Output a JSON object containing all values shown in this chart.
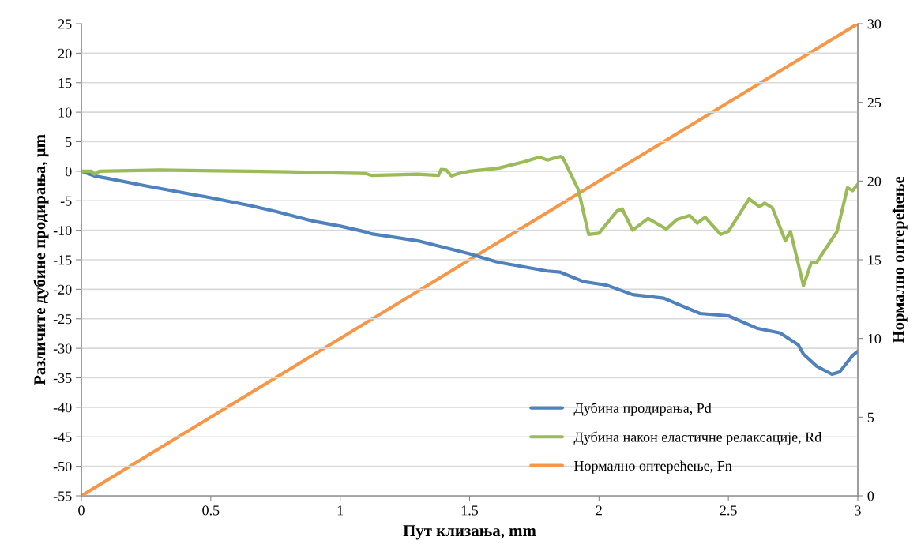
{
  "chart_data": {
    "type": "line",
    "xlabel": "Пут клизања, mm",
    "ylabel": "Различите дубине продирања, µm",
    "y2label": "Нормално оптерећење",
    "xlim": [
      0,
      3
    ],
    "xticks": [
      0,
      0.5,
      1,
      1.5,
      2,
      2.5,
      3
    ],
    "ylim": [
      -55,
      25
    ],
    "yticks": [
      -55,
      -50,
      -45,
      -40,
      -35,
      -30,
      -25,
      -20,
      -15,
      -10,
      -5,
      0,
      5,
      10,
      15,
      20,
      25
    ],
    "y2lim": [
      0,
      30
    ],
    "y2ticks": [
      0,
      5,
      10,
      15,
      20,
      25,
      30
    ],
    "grid": "y",
    "legend": "bottom right",
    "marker": "none",
    "line_style": "solid",
    "series": [
      {
        "name": "Дубина продирања, Pd",
        "color": "#4f81bd",
        "x": [
          0,
          0.05,
          0.1,
          0.25,
          0.5,
          0.65,
          0.75,
          0.9,
          1.0,
          1.1,
          1.12,
          1.3,
          1.5,
          1.6,
          1.62,
          1.8,
          1.85,
          1.94,
          2.03,
          2.13,
          2.25,
          2.39,
          2.5,
          2.61,
          2.7,
          2.77,
          2.79,
          2.84,
          2.9,
          2.93,
          2.98,
          3.0
        ],
        "values": [
          0,
          -0.8,
          -1.2,
          -2.5,
          -4.5,
          -5.8,
          -6.8,
          -8.5,
          -9.3,
          -10.3,
          -10.6,
          -11.8,
          -14,
          -15.3,
          -15.5,
          -16.9,
          -17.1,
          -18.7,
          -19.3,
          -20.9,
          -21.5,
          -24.1,
          -24.5,
          -26.6,
          -27.4,
          -29.4,
          -31,
          -33,
          -34.4,
          -34,
          -31.2,
          -30.5
        ]
      },
      {
        "name": "Дубина након еластичне релаксације, Rd",
        "color": "#9bbb59",
        "x": [
          0,
          0.04,
          0.05,
          0.07,
          0.3,
          0.65,
          0.8,
          1.0,
          1.1,
          1.12,
          1.3,
          1.38,
          1.39,
          1.41,
          1.43,
          1.456,
          1.5,
          1.61,
          1.71,
          1.77,
          1.8,
          1.85,
          1.86,
          1.89,
          1.92,
          1.96,
          2.0,
          2.07,
          2.09,
          2.13,
          2.19,
          2.26,
          2.3,
          2.35,
          2.38,
          2.41,
          2.47,
          2.5,
          2.58,
          2.62,
          2.64,
          2.67,
          2.72,
          2.74,
          2.79,
          2.82,
          2.84,
          2.92,
          2.96,
          2.98,
          3.0
        ],
        "values": [
          0,
          0,
          -0.5,
          0,
          0.2,
          0,
          -0.1,
          -0.3,
          -0.4,
          -0.7,
          -0.5,
          -0.7,
          0.3,
          0.2,
          -0.8,
          -0.4,
          0,
          0.5,
          1.6,
          2.4,
          1.9,
          2.5,
          2.3,
          -0.4,
          -3.1,
          -10.7,
          -10.5,
          -6.7,
          -6.4,
          -10.0,
          -8.0,
          -9.8,
          -8.2,
          -7.5,
          -8.8,
          -7.8,
          -10.7,
          -10.2,
          -4.7,
          -6.0,
          -5.4,
          -6.2,
          -11.8,
          -10.2,
          -19.4,
          -15.5,
          -15.5,
          -10.2,
          -2.8,
          -3.3,
          -2.2
        ]
      },
      {
        "name": "Нормално оптерећење, Fn",
        "color": "#f79646",
        "axis": "y2",
        "x": [
          0,
          3
        ],
        "values": [
          0,
          30
        ]
      }
    ]
  }
}
